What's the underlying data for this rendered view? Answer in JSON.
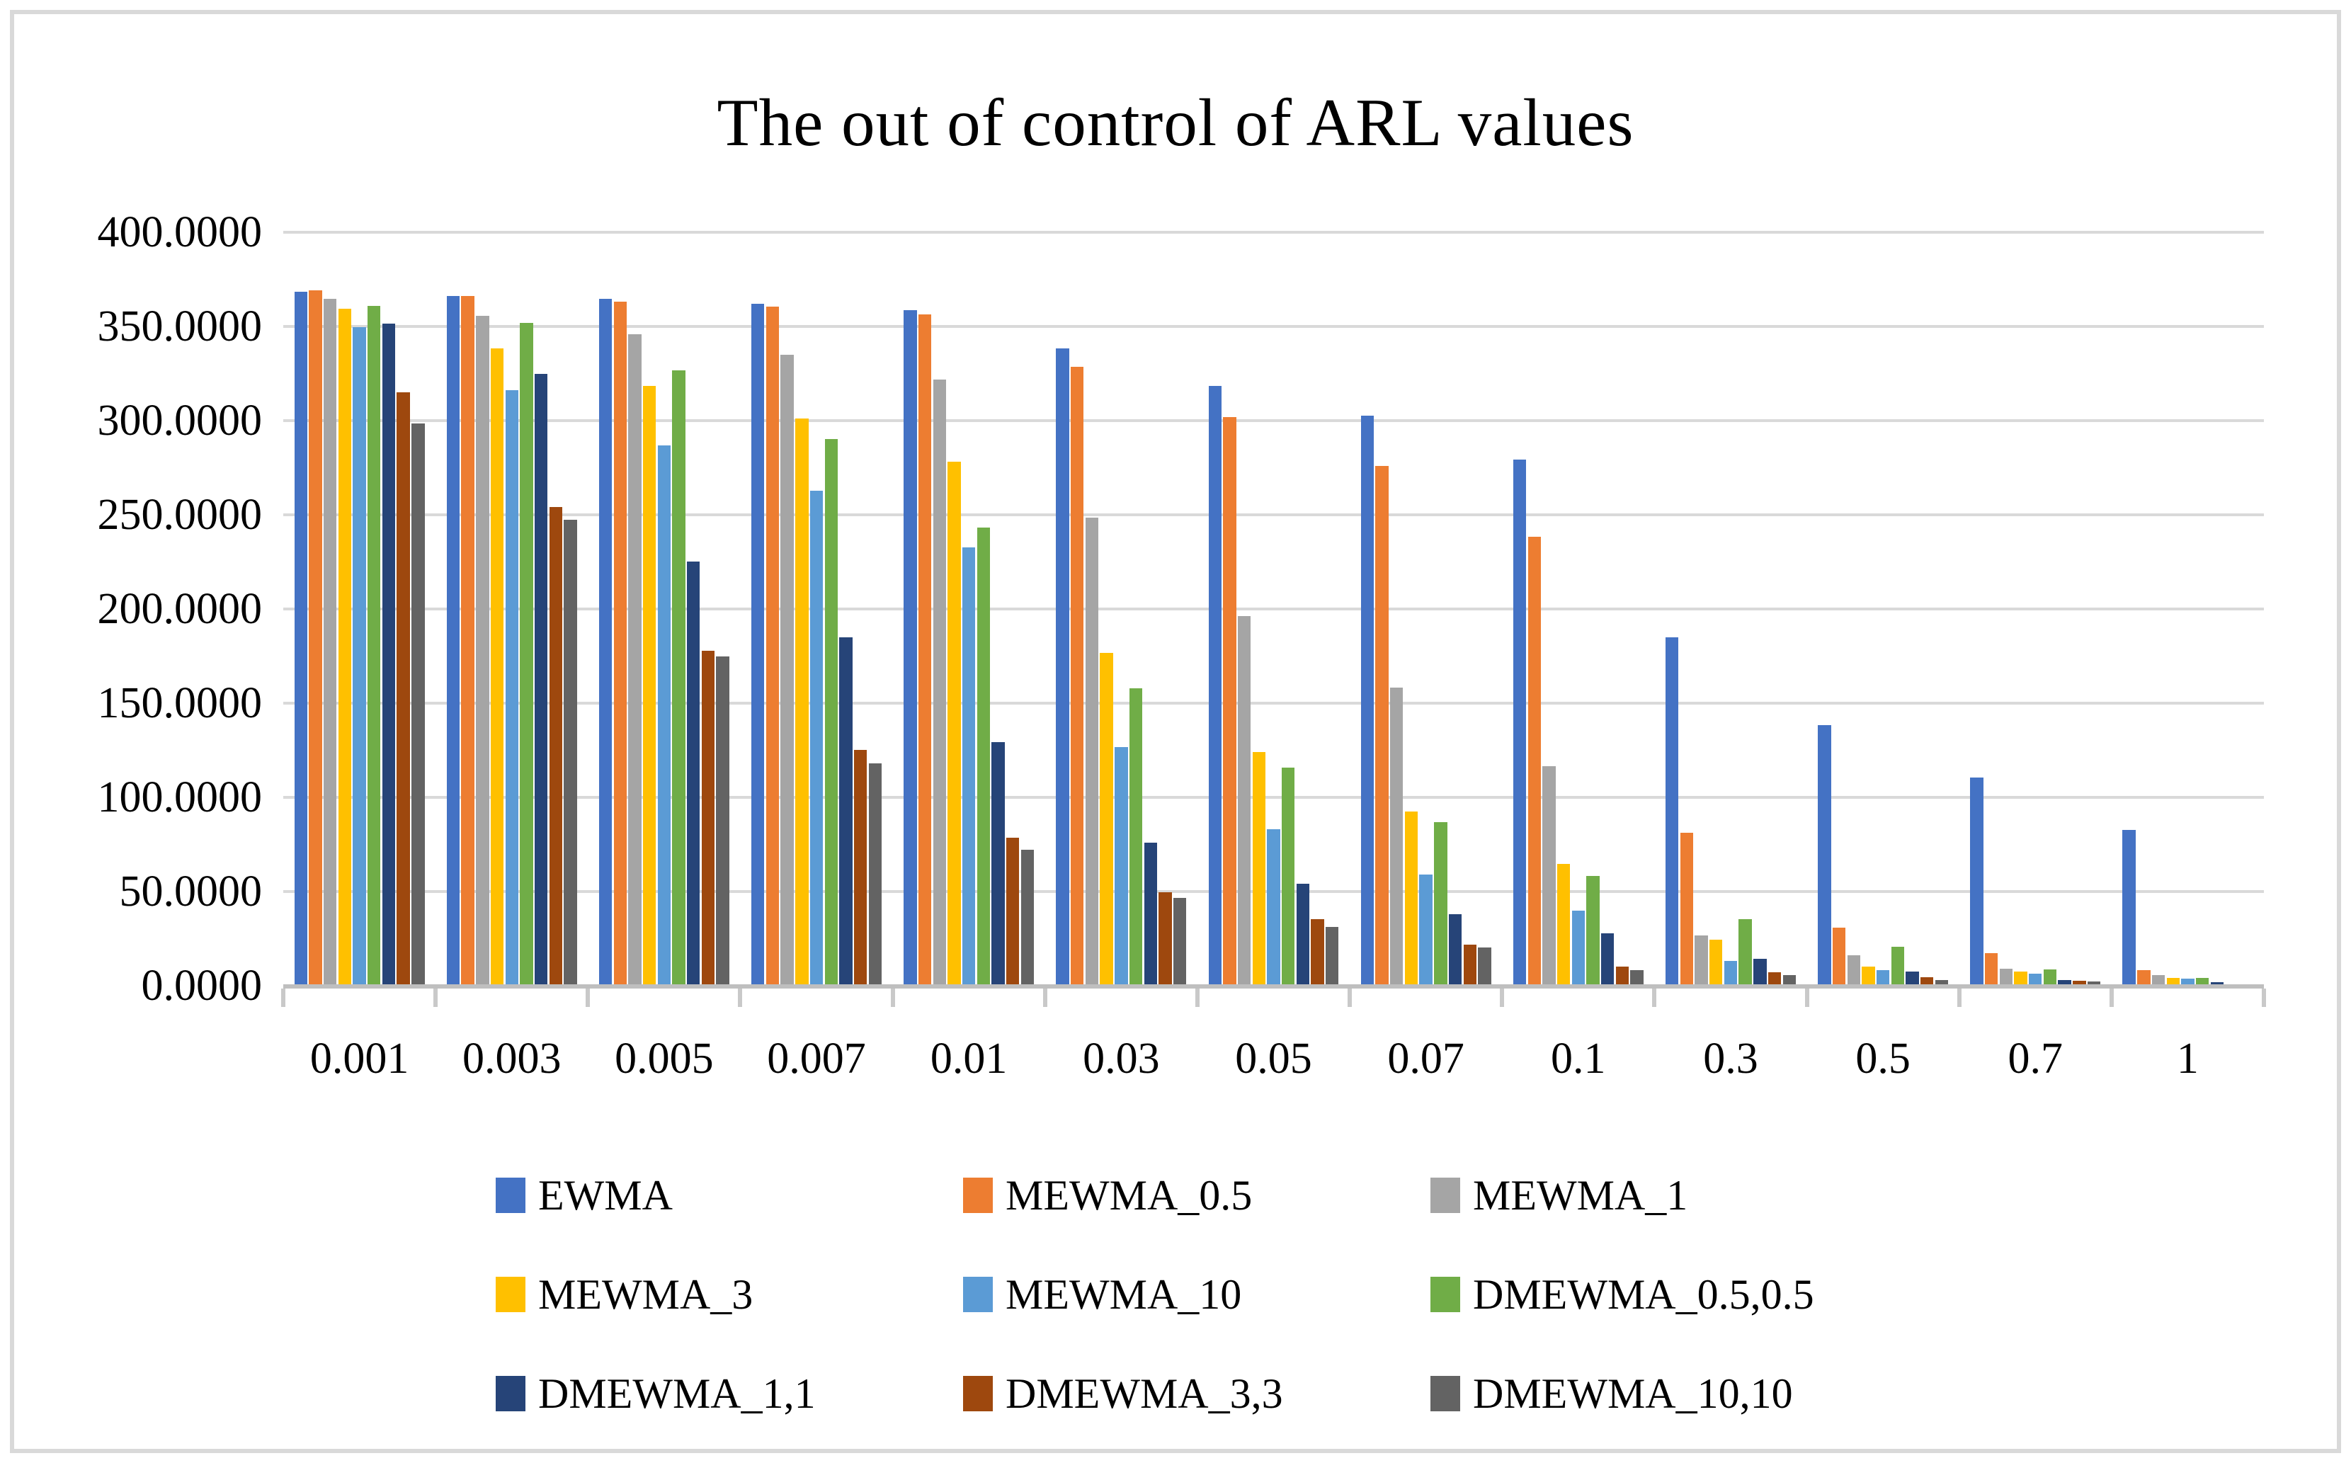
{
  "chart_data": {
    "type": "bar",
    "title": "The out of control of ARL values",
    "xlabel": "",
    "ylabel": "",
    "ylim": [
      0,
      400
    ],
    "ytick_step": 50,
    "ytick_decimals": 4,
    "grid": "horizontal-only",
    "legend_position": "bottom",
    "categories": [
      "0.001",
      "0.003",
      "0.005",
      "0.007",
      "0.01",
      "0.03",
      "0.05",
      "0.07",
      "0.1",
      "0.3",
      "0.5",
      "0.7",
      "1"
    ],
    "series": [
      {
        "name": "EWMA",
        "color": "#4472C4",
        "values": [
          368.5,
          366.3,
          364.5,
          362.0,
          358.5,
          338.3,
          318.3,
          302.5,
          279.4,
          185.0,
          138.2,
          110.5,
          82.7
        ]
      },
      {
        "name": "MEWMA_0.5",
        "color": "#ED7D31",
        "values": [
          369.0,
          366.0,
          363.3,
          360.6,
          356.4,
          328.5,
          302.0,
          275.8,
          238.3,
          81.2,
          30.7,
          17.2,
          8.2
        ]
      },
      {
        "name": "MEWMA_1",
        "color": "#A5A5A5",
        "values": [
          364.8,
          355.6,
          345.8,
          335.0,
          321.7,
          248.5,
          196.3,
          158.3,
          116.7,
          26.7,
          16.0,
          8.9,
          5.7
        ]
      },
      {
        "name": "MEWMA_3",
        "color": "#FFC000",
        "values": [
          359.3,
          338.3,
          318.3,
          301.1,
          278.1,
          176.7,
          124.2,
          92.5,
          64.5,
          24.3,
          10.1,
          7.6,
          4.0
        ]
      },
      {
        "name": "MEWMA_10",
        "color": "#5B9BD5",
        "values": [
          349.6,
          316.1,
          287.0,
          262.8,
          232.8,
          126.7,
          83.1,
          59.2,
          39.7,
          13.2,
          8.4,
          6.4,
          3.8
        ]
      },
      {
        "name": "DMEWMA_0.5,0.5",
        "color": "#70AD47",
        "values": [
          361.0,
          351.7,
          326.7,
          290.3,
          243.3,
          157.8,
          115.8,
          86.9,
          58.3,
          35.3,
          20.8,
          8.7,
          4.0
        ]
      },
      {
        "name": "DMEWMA_1,1",
        "color": "#264478",
        "values": [
          351.6,
          325.0,
          225.3,
          185.0,
          129.4,
          75.8,
          54.2,
          37.8,
          27.8,
          14.2,
          7.6,
          2.9,
          1.9
        ]
      },
      {
        "name": "DMEWMA_3,3",
        "color": "#9E480E",
        "values": [
          315.0,
          254.2,
          177.8,
          125.3,
          78.6,
          49.7,
          35.3,
          21.7,
          10.0,
          7.3,
          4.4,
          2.5,
          0.9
        ]
      },
      {
        "name": "DMEWMA_10,10",
        "color": "#636363",
        "values": [
          298.4,
          247.2,
          175.0,
          118.1,
          72.2,
          46.7,
          31.1,
          20.3,
          8.3,
          5.5,
          3.0,
          2.3,
          0.5
        ]
      }
    ]
  },
  "style_colors": {
    "gridline": "#d9d9d9",
    "axis": "#bfbfbf",
    "tick": "#c9c9c9",
    "frame": "#d9d9d9",
    "text": "#000000"
  }
}
